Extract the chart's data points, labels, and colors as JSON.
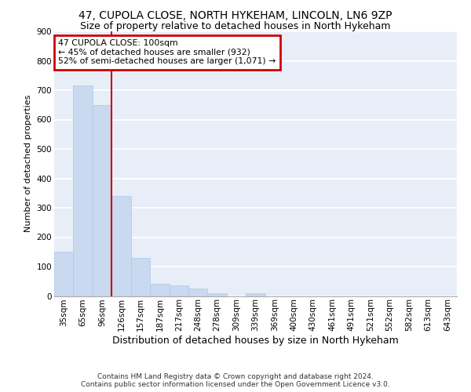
{
  "title_line1": "47, CUPOLA CLOSE, NORTH HYKEHAM, LINCOLN, LN6 9ZP",
  "title_line2": "Size of property relative to detached houses in North Hykeham",
  "xlabel": "Distribution of detached houses by size in North Hykeham",
  "ylabel": "Number of detached properties",
  "categories": [
    "35sqm",
    "65sqm",
    "96sqm",
    "126sqm",
    "157sqm",
    "187sqm",
    "217sqm",
    "248sqm",
    "278sqm",
    "309sqm",
    "339sqm",
    "369sqm",
    "400sqm",
    "430sqm",
    "461sqm",
    "491sqm",
    "521sqm",
    "552sqm",
    "582sqm",
    "613sqm",
    "643sqm"
  ],
  "values": [
    150,
    715,
    650,
    340,
    130,
    42,
    35,
    25,
    10,
    0,
    10,
    0,
    0,
    0,
    0,
    0,
    0,
    0,
    0,
    0,
    0
  ],
  "bar_color": "#c8d9f0",
  "bar_edge_color": "#b0c8e8",
  "vline_x_index": 2,
  "vline_color": "#cc0000",
  "annotation_text": "47 CUPOLA CLOSE: 100sqm\n← 45% of detached houses are smaller (932)\n52% of semi-detached houses are larger (1,071) →",
  "annotation_box_facecolor": "#ffffff",
  "annotation_box_edgecolor": "#cc0000",
  "ylim": [
    0,
    900
  ],
  "yticks": [
    0,
    100,
    200,
    300,
    400,
    500,
    600,
    700,
    800,
    900
  ],
  "background_color": "#e8eef8",
  "grid_color": "#ffffff",
  "footer_full": "Contains HM Land Registry data © Crown copyright and database right 2024.\nContains public sector information licensed under the Open Government Licence v3.0.",
  "title_fontsize": 10,
  "subtitle_fontsize": 9,
  "ylabel_fontsize": 8,
  "xlabel_fontsize": 9,
  "tick_fontsize": 7.5,
  "footer_fontsize": 6.5
}
